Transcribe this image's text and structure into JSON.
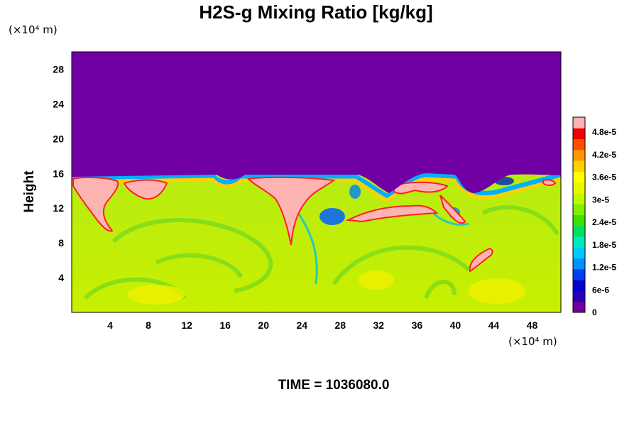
{
  "chart_data": {
    "type": "heatmap",
    "title": "H2S-g Mixing Ratio [kg/kg]",
    "xlabel": "",
    "ylabel": "Height",
    "x_unit": "(×10⁴ m)",
    "y_unit": "(×10⁴ m)",
    "xlim": [
      0,
      51
    ],
    "ylim": [
      0,
      30
    ],
    "x_ticks": [
      "4",
      "8",
      "12",
      "16",
      "20",
      "24",
      "28",
      "32",
      "36",
      "40",
      "44",
      "48"
    ],
    "y_ticks": [
      "4",
      "8",
      "12",
      "16",
      "20",
      "24",
      "28"
    ],
    "colorbar": {
      "range": [
        0,
        5.2e-05
      ],
      "tick_labels": [
        "0",
        "6e-6",
        "1.2e-5",
        "1.8e-5",
        "2.4e-5",
        "3e-5",
        "3.6e-5",
        "4.2e-5",
        "4.8e-5"
      ],
      "tick_values": [
        0,
        6e-06,
        1.2e-05,
        1.8e-05,
        2.4e-05,
        3e-05,
        3.6e-05,
        4.2e-05,
        4.8e-05
      ],
      "colors": [
        "#7000a0",
        "#2a00b4",
        "#0000d0",
        "#0040f0",
        "#0090ff",
        "#00c8ff",
        "#00e8c0",
        "#00e060",
        "#40e000",
        "#80f000",
        "#c0f800",
        "#e8f800",
        "#ffff00",
        "#ffd000",
        "#ff9800",
        "#ff5000",
        "#f00000",
        "#ffb0b0"
      ]
    },
    "upper_region": {
      "value": 0,
      "label": "above ~15 (×10⁴ m)"
    },
    "lower_region_value": 3e-05,
    "high_value_plumes": [
      {
        "x": 2.5,
        "y": 13.5,
        "value": 5e-05
      },
      {
        "x": 7.5,
        "y": 13.8,
        "value": 5e-05
      },
      {
        "x": 22,
        "y": 13.5,
        "value": 5e-05
      },
      {
        "x": 31,
        "y": 11.8,
        "value": 5e-05
      },
      {
        "x": 35,
        "y": 13.5,
        "value": 5e-05
      },
      {
        "x": 42.5,
        "y": 6.5,
        "value": 5e-05
      }
    ]
  },
  "footer": {
    "time_label": "TIME = 1036080.0"
  }
}
